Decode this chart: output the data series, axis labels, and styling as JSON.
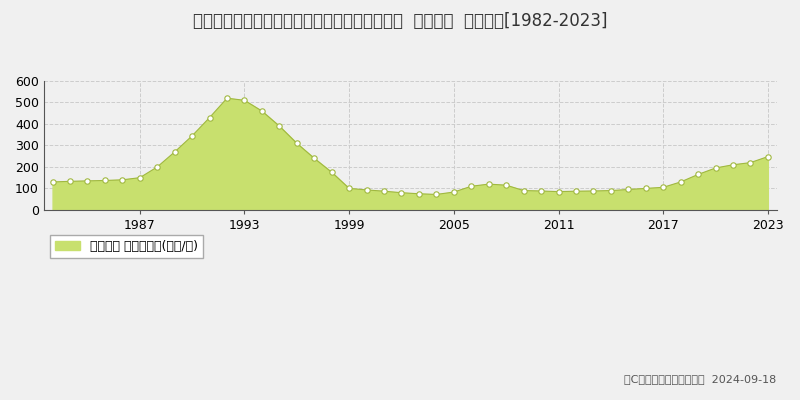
{
  "title": "北海道札幌市中央区大通西１４丁目１番１５外  公示地価  地価推移[1982-2023]",
  "years": [
    1982,
    1983,
    1984,
    1985,
    1986,
    1987,
    1988,
    1989,
    1990,
    1991,
    1992,
    1993,
    1994,
    1995,
    1996,
    1997,
    1998,
    1999,
    2000,
    2001,
    2002,
    2003,
    2004,
    2005,
    2006,
    2007,
    2008,
    2009,
    2010,
    2011,
    2012,
    2013,
    2014,
    2015,
    2016,
    2017,
    2018,
    2019,
    2020,
    2021,
    2022,
    2023
  ],
  "values": [
    130,
    133,
    135,
    137,
    140,
    150,
    200,
    270,
    345,
    430,
    520,
    510,
    460,
    390,
    310,
    240,
    175,
    100,
    93,
    87,
    80,
    75,
    72,
    83,
    110,
    120,
    115,
    90,
    88,
    85,
    87,
    88,
    90,
    95,
    100,
    105,
    130,
    165,
    195,
    210,
    220,
    248
  ],
  "fill_color": "#c8e06e",
  "line_color": "#a0b840",
  "marker_color": "#ffffff",
  "marker_edge_color": "#a0b840",
  "bg_color": "#f0f0f0",
  "plot_bg_color": "#f0f0f0",
  "grid_color": "#cccccc",
  "ylim": [
    0,
    600
  ],
  "yticks": [
    0,
    100,
    200,
    300,
    400,
    500,
    600
  ],
  "xlabel_ticks": [
    1987,
    1993,
    1999,
    2005,
    2011,
    2017,
    2023
  ],
  "legend_label": "公示地価 平均坪単価(万円/坪)",
  "copyright_text": "（C）土地価格ドットコム  2024-09-18",
  "title_fontsize": 12,
  "tick_fontsize": 9,
  "legend_fontsize": 9,
  "copyright_fontsize": 8
}
